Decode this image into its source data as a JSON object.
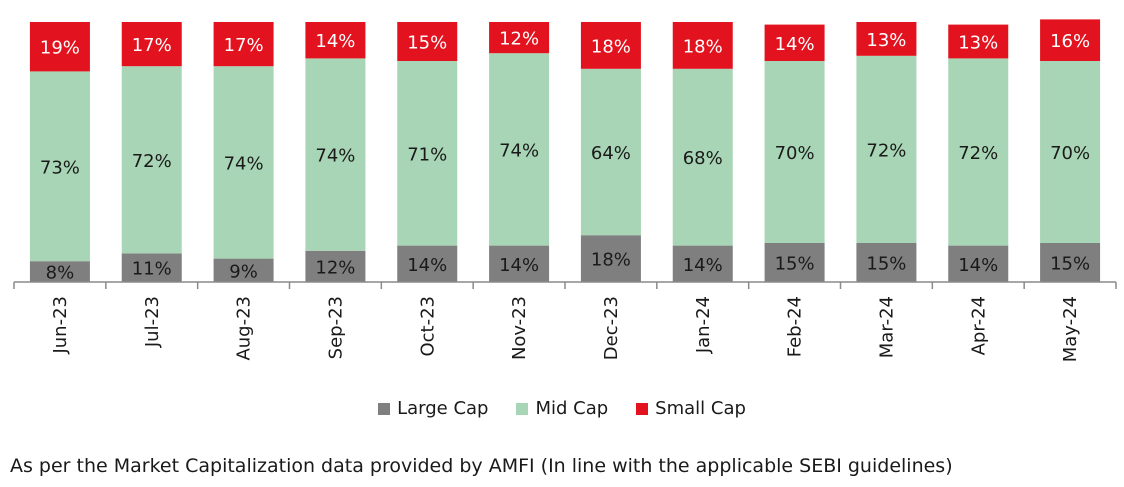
{
  "chart_data": {
    "type": "bar",
    "stacked": true,
    "percent": true,
    "categories": [
      "Jun-23",
      "Jul-23",
      "Aug-23",
      "Sep-23",
      "Oct-23",
      "Nov-23",
      "Dec-23",
      "Jan-24",
      "Feb-24",
      "Mar-24",
      "Apr-24",
      "May-24"
    ],
    "series": [
      {
        "name": "Large Cap",
        "color": "#7f7f7f",
        "values": [
          8,
          11,
          9,
          12,
          14,
          14,
          18,
          14,
          15,
          15,
          14,
          15
        ]
      },
      {
        "name": "Mid Cap",
        "color": "#a8d5b5",
        "values": [
          73,
          72,
          74,
          74,
          71,
          74,
          64,
          68,
          70,
          72,
          72,
          70
        ]
      },
      {
        "name": "Small Cap",
        "color": "#e2131f",
        "values": [
          19,
          17,
          17,
          14,
          15,
          12,
          18,
          18,
          14,
          13,
          13,
          16
        ]
      }
    ],
    "ylim": [
      0,
      100
    ],
    "legend_position": "bottom"
  },
  "footnote": "As per the Market Capitalization data provided by AMFI (In line with the applicable SEBI guidelines)"
}
